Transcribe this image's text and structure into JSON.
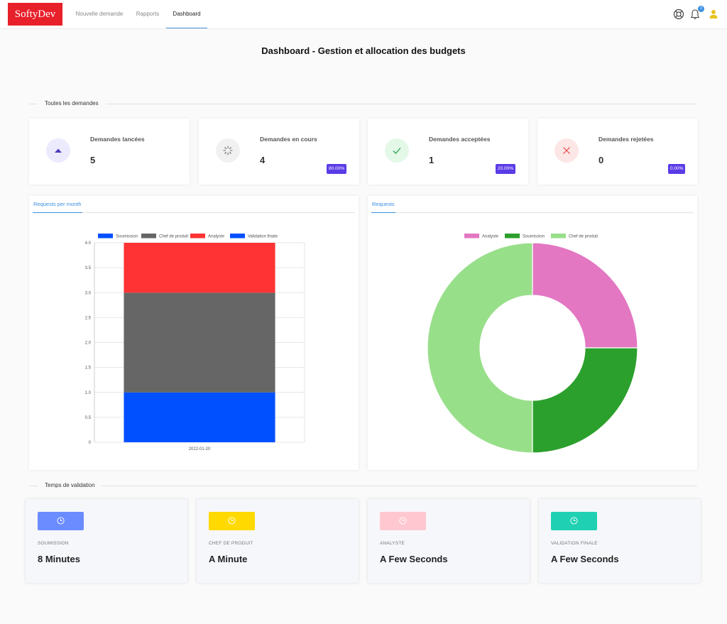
{
  "navbar": {
    "logo": "SoftyDev",
    "links": [
      "Nouvelle demande",
      "Rapports",
      "Dashboard"
    ],
    "active_link": "Dashboard",
    "notification_count": "3"
  },
  "page_title": "Dashboard - Gestion et allocation des budgets",
  "sections": {
    "requests": "Toutes les demandes",
    "validation": "Temps de validation"
  },
  "stats": [
    {
      "title": "Demandes lancées",
      "value": "5",
      "badge": "",
      "icon": "triangle-up-icon",
      "icon_bg": "#eceafd",
      "icon_color": "#4b3bbf"
    },
    {
      "title": "Demandes en cours",
      "value": "4",
      "badge": "80.00%",
      "icon": "spinner-icon",
      "icon_bg": "#f1f1f1",
      "icon_color": "#666666"
    },
    {
      "title": "Demandes acceptées",
      "value": "1",
      "badge": "20.00%",
      "icon": "check-icon",
      "icon_bg": "#e4f8e8",
      "icon_color": "#2ea44f"
    },
    {
      "title": "Demandes rejetées",
      "value": "0",
      "badge": "0.00%",
      "icon": "close-icon",
      "icon_bg": "#fde6e6",
      "icon_color": "#e5484d"
    }
  ],
  "panels": {
    "left_tab": "Requests per month",
    "right_tab": "Requests"
  },
  "chart_data": [
    {
      "type": "bar",
      "stacked": true,
      "categories": [
        "2022-01-20"
      ],
      "series": [
        {
          "name": "Soumission",
          "values": [
            1
          ],
          "color": "#0050ff"
        },
        {
          "name": "Chef de produit",
          "values": [
            2
          ],
          "color": "#666666"
        },
        {
          "name": "Analyste",
          "values": [
            1
          ],
          "color": "#ff3333"
        },
        {
          "name": "Validation finale",
          "values": [
            0
          ],
          "color": "#0050ff"
        }
      ],
      "ylim": [
        0,
        4
      ],
      "yticks": [
        "0",
        "0.5",
        "1.0",
        "1.5",
        "2.0",
        "2.5",
        "3.0",
        "3.5",
        "4.0"
      ],
      "grid": true,
      "legend": "top"
    },
    {
      "type": "pie",
      "donut": true,
      "labels": [
        "Analyste",
        "Soumission",
        "Chef de produit"
      ],
      "values": [
        1,
        1,
        2
      ],
      "colors": [
        "#e377c2",
        "#2ca02c",
        "#98df8a"
      ],
      "legend": "top"
    }
  ],
  "validation_times": [
    {
      "label": "SOUMISSION",
      "value": "8 Minutes",
      "color": "#6b8cff"
    },
    {
      "label": "CHEF DE PRODUIT",
      "value": "A Minute",
      "color": "#ffd900"
    },
    {
      "label": "ANALYSTE",
      "value": "A Few Seconds",
      "color": "#ffc8d0"
    },
    {
      "label": "VALIDATION FINALE",
      "value": "A Few Seconds",
      "color": "#1fd1b2"
    }
  ]
}
